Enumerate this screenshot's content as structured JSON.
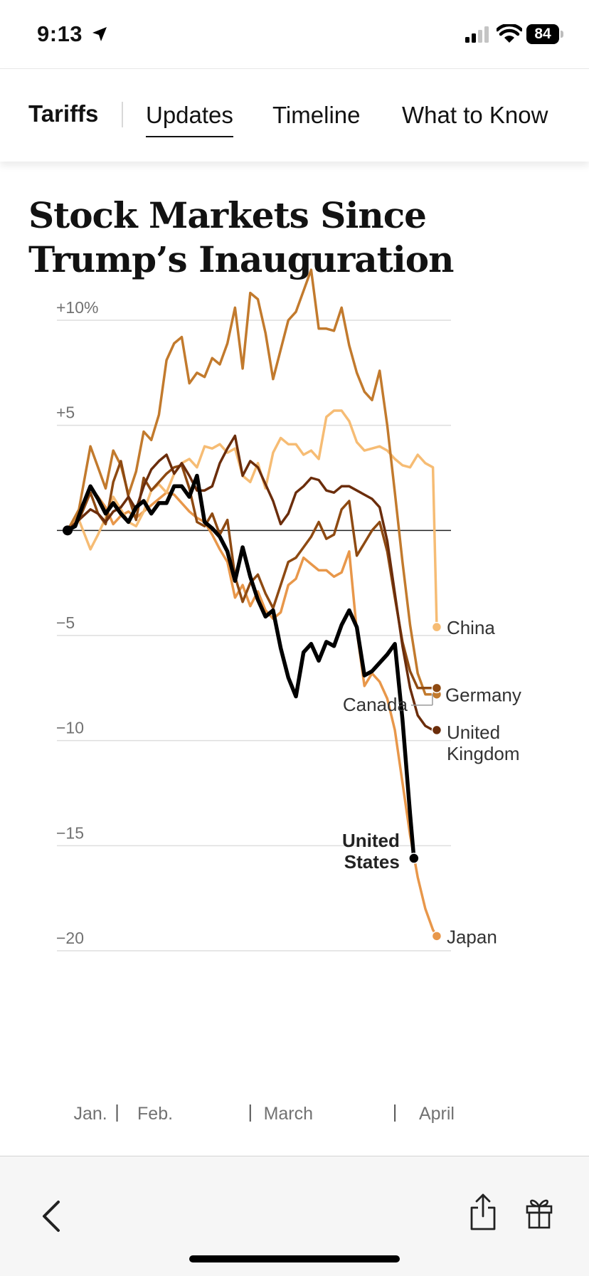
{
  "status_bar": {
    "time": "9:13",
    "battery": "84"
  },
  "nav": {
    "brand": "Tariffs",
    "tabs": [
      {
        "label": "Updates",
        "active": true
      },
      {
        "label": "Timeline",
        "active": false
      },
      {
        "label": "What to Know",
        "active": false
      }
    ]
  },
  "headline": "Stock Markets Since Trump’s Inauguration",
  "chart_data": {
    "type": "line",
    "title": "Stock Markets Since Trump’s Inauguration",
    "xlabel": "",
    "ylabel": "",
    "ylim": [
      -20,
      12
    ],
    "yticks": [
      {
        "value": 10,
        "label": "+10%"
      },
      {
        "value": 5,
        "label": "+5"
      },
      {
        "value": -5,
        "label": "−5"
      },
      {
        "value": -10,
        "label": "−10"
      },
      {
        "value": -15,
        "label": "−15"
      },
      {
        "value": -20,
        "label": "−20"
      }
    ],
    "xlim": [
      0,
      100
    ],
    "xticks": [
      {
        "value": 6,
        "label": "Jan."
      },
      {
        "value": 23,
        "label": "Feb."
      },
      {
        "value": 58,
        "label": "March"
      },
      {
        "value": 97,
        "label": "April"
      }
    ],
    "month_dividers": [
      13,
      48,
      86
    ],
    "baseline": 0,
    "series": [
      {
        "name": "Japan",
        "label": "Japan",
        "color": "#E8974A",
        "end": -19.3,
        "x": [
          0,
          3,
          6,
          8,
          10,
          12,
          14,
          16,
          18,
          20,
          22,
          24,
          26,
          28,
          30,
          32,
          34,
          36,
          38,
          40,
          42,
          44,
          46,
          48,
          50,
          52,
          54,
          56,
          58,
          60,
          62,
          64,
          66,
          68,
          70,
          72,
          74,
          76,
          78,
          80,
          82,
          84,
          86,
          88,
          90,
          92,
          94,
          96,
          97
        ],
        "values": [
          0,
          0.8,
          2,
          1.6,
          1.1,
          0.3,
          0.7,
          0.9,
          0.6,
          0.9,
          1.2,
          1.5,
          1.8,
          1.7,
          1.3,
          0.9,
          0.6,
          0.4,
          -0.2,
          -0.9,
          -1.5,
          -3.2,
          -2.6,
          -3.6,
          -2.9,
          -3.8,
          -4.2,
          -3.9,
          -2.6,
          -2.3,
          -1.3,
          -1.6,
          -1.9,
          -1.9,
          -2.2,
          -2.0,
          -1.0,
          -4.8,
          -7.4,
          -6.8,
          -7.2,
          -8.0,
          -9.5,
          -12.0,
          -14.5,
          -16.5,
          -18.0,
          -19.0,
          -19.3
        ]
      },
      {
        "name": "China",
        "label": "China",
        "color": "#F6BC74",
        "end": -4.6,
        "x": [
          0,
          3,
          6,
          8,
          10,
          12,
          14,
          16,
          18,
          20,
          22,
          24,
          26,
          28,
          30,
          32,
          34,
          36,
          38,
          40,
          42,
          44,
          46,
          48,
          50,
          52,
          54,
          56,
          58,
          60,
          62,
          64,
          66,
          68,
          70,
          72,
          74,
          76,
          78,
          80,
          82,
          84,
          86,
          88,
          90,
          92,
          94,
          96,
          97
        ],
        "values": [
          0,
          0.5,
          -0.9,
          -0.2,
          0.6,
          1.6,
          1.0,
          0.4,
          0.2,
          0.9,
          1.9,
          2.2,
          1.8,
          2.7,
          3.2,
          3.4,
          3.0,
          4.0,
          3.9,
          4.1,
          3.7,
          3.9,
          2.6,
          2.3,
          3.2,
          2.0,
          3.7,
          4.4,
          4.1,
          4.1,
          3.6,
          3.8,
          3.4,
          5.4,
          5.7,
          5.7,
          5.2,
          4.2,
          3.8,
          3.9,
          4.0,
          3.8,
          3.4,
          3.1,
          3.0,
          3.6,
          3.2,
          3.0,
          -4.6
        ]
      },
      {
        "name": "Germany",
        "label": "Germany",
        "color": "#C27A2D",
        "end": -7.8,
        "x": [
          0,
          3,
          6,
          8,
          10,
          12,
          14,
          16,
          18,
          20,
          22,
          24,
          26,
          28,
          30,
          32,
          34,
          36,
          38,
          40,
          42,
          44,
          46,
          48,
          50,
          52,
          54,
          56,
          58,
          60,
          62,
          64,
          66,
          68,
          70,
          72,
          74,
          76,
          78,
          80,
          82,
          84,
          86,
          88,
          90,
          92,
          94,
          96,
          97
        ],
        "values": [
          0,
          1.0,
          4.0,
          3.0,
          2.0,
          3.8,
          3.1,
          1.7,
          2.8,
          4.7,
          4.3,
          5.5,
          8.1,
          8.9,
          9.2,
          7.0,
          7.5,
          7.3,
          8.2,
          7.9,
          8.9,
          10.6,
          7.7,
          11.3,
          11.0,
          9.4,
          7.2,
          8.6,
          10.0,
          10.4,
          11.4,
          12.4,
          9.6,
          9.6,
          9.5,
          10.6,
          8.8,
          7.5,
          6.6,
          6.2,
          7.6,
          5.0,
          1.8,
          -1.5,
          -4.5,
          -6.8,
          -7.8,
          -7.8,
          -7.8
        ]
      },
      {
        "name": "Canada",
        "label": "Canada",
        "color": "#8E4A12",
        "end": -7.5,
        "x": [
          0,
          3,
          6,
          8,
          10,
          12,
          14,
          16,
          18,
          20,
          22,
          24,
          26,
          28,
          30,
          32,
          34,
          36,
          38,
          40,
          42,
          44,
          46,
          48,
          50,
          52,
          54,
          56,
          58,
          60,
          62,
          64,
          66,
          68,
          70,
          72,
          74,
          76,
          78,
          80,
          82,
          84,
          86,
          88,
          90,
          92,
          94,
          96,
          97
        ],
        "values": [
          0,
          0.5,
          1.8,
          0.8,
          0.3,
          2.3,
          3.3,
          1.6,
          0.5,
          2.5,
          1.9,
          2.3,
          2.7,
          3.0,
          3.1,
          2.0,
          0.4,
          0.2,
          0.8,
          -0.2,
          0.5,
          -2.2,
          -3.4,
          -2.5,
          -2.1,
          -3.0,
          -3.7,
          -2.6,
          -1.5,
          -1.3,
          -0.8,
          -0.3,
          0.4,
          -0.4,
          -0.2,
          1.0,
          1.4,
          -1.2,
          -0.6,
          0.0,
          0.4,
          -1.0,
          -3.2,
          -5.3,
          -6.7,
          -7.5,
          -7.5,
          -7.5,
          -7.5
        ]
      },
      {
        "name": "United Kingdom",
        "label": "United Kingdom",
        "color": "#6B2D0B",
        "end": -9.5,
        "x": [
          0,
          3,
          6,
          8,
          10,
          12,
          14,
          16,
          18,
          20,
          22,
          24,
          26,
          28,
          30,
          32,
          34,
          36,
          38,
          40,
          42,
          44,
          46,
          48,
          50,
          52,
          54,
          56,
          58,
          60,
          62,
          64,
          66,
          68,
          70,
          72,
          74,
          76,
          78,
          80,
          82,
          84,
          86,
          88,
          90,
          92,
          94,
          96,
          97
        ],
        "values": [
          0,
          0.5,
          1.0,
          0.8,
          0.4,
          0.9,
          1.1,
          1.6,
          1.0,
          2.1,
          2.9,
          3.3,
          3.6,
          2.7,
          3.2,
          2.6,
          1.9,
          1.9,
          2.1,
          3.2,
          3.9,
          4.5,
          2.6,
          3.3,
          3.0,
          2.2,
          1.4,
          0.3,
          0.8,
          1.8,
          2.1,
          2.5,
          2.4,
          1.9,
          1.8,
          2.1,
          2.1,
          1.9,
          1.7,
          1.5,
          1.1,
          -0.5,
          -3.0,
          -5.5,
          -7.5,
          -8.8,
          -9.3,
          -9.5,
          -9.5
        ]
      },
      {
        "name": "United States",
        "label": "United States",
        "color": "#000000",
        "bold": true,
        "end": -15.6,
        "x": [
          0,
          2,
          4,
          6,
          8,
          10,
          12,
          14,
          16,
          18,
          20,
          22,
          24,
          26,
          28,
          30,
          32,
          34,
          36,
          38,
          40,
          42,
          44,
          46,
          48,
          50,
          52,
          54,
          56,
          58,
          60,
          62,
          64,
          66,
          68,
          70,
          72,
          74,
          76,
          78,
          80,
          82,
          84,
          86,
          88,
          90,
          91
        ],
        "values": [
          0,
          0.2,
          1.2,
          2.1,
          1.5,
          0.8,
          1.3,
          0.8,
          0.4,
          1.1,
          1.4,
          0.8,
          1.3,
          1.3,
          2.1,
          2.1,
          1.6,
          2.6,
          0.4,
          0.1,
          -0.3,
          -1.0,
          -2.4,
          -0.8,
          -2.2,
          -3.3,
          -4.1,
          -3.8,
          -5.6,
          -7.0,
          -7.9,
          -5.8,
          -5.4,
          -6.2,
          -5.3,
          -5.5,
          -4.5,
          -3.8,
          -4.6,
          -6.9,
          -6.7,
          -6.3,
          -5.9,
          -5.4,
          -9.0,
          -13.5,
          -15.6
        ]
      }
    ],
    "labels": {
      "china": "China",
      "germany": "Germany",
      "canada": "Canada",
      "uk_line1": "United",
      "uk_line2": "Kingdom",
      "us_line1": "United",
      "us_line2": "States",
      "japan": "Japan"
    }
  }
}
